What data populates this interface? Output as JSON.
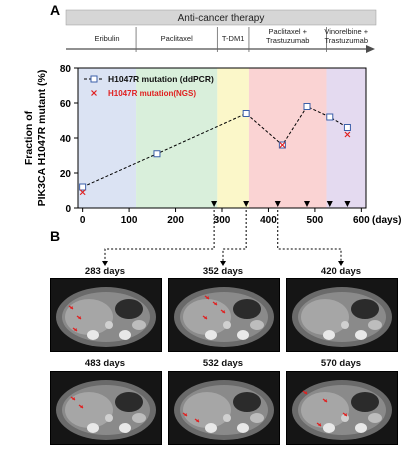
{
  "panel_a_letter": "A",
  "panel_b_letter": "B",
  "therapy_header": "Anti-cancer therapy",
  "phases": [
    {
      "label": "Eribulin",
      "label2": "",
      "start": -10,
      "end": 115,
      "color": "#dbe3f3"
    },
    {
      "label": "Paclitaxel",
      "label2": "",
      "start": 115,
      "end": 290,
      "color": "#d9efdb"
    },
    {
      "label": "T-DM1",
      "label2": "",
      "start": 290,
      "end": 358,
      "color": "#fbf7c9"
    },
    {
      "label": "Paclitaxel +",
      "label2": "Trastuzumab",
      "start": 358,
      "end": 525,
      "color": "#fad3d3"
    },
    {
      "label": "Vinorelbine +",
      "label2": "Trastuzumab",
      "start": 525,
      "end": 610,
      "color": "#e4daf0"
    }
  ],
  "chart_data": {
    "type": "line",
    "xlabel": "(days)",
    "ylabel_line1": "Fraction of",
    "ylabel_line2": "PIK3CA H1047R mutant (%)",
    "xlim": [
      -10,
      610
    ],
    "ylim": [
      0,
      80
    ],
    "xticks": [
      0,
      100,
      200,
      300,
      400,
      500,
      600
    ],
    "yticks": [
      0,
      20,
      40,
      60,
      80
    ],
    "legend_position": "top-left",
    "series": [
      {
        "name": "H1047R mutation (ddPCR)",
        "marker": "square",
        "color": "#3b5fa8",
        "line": "dashed",
        "x": [
          0,
          160,
          352,
          430,
          483,
          532,
          570
        ],
        "y": [
          12,
          31,
          54,
          36,
          58,
          52,
          46
        ]
      },
      {
        "name": "H1047R mutation(NGS)",
        "marker": "x",
        "color": "#e02020",
        "line": "none",
        "x": [
          0,
          430,
          570
        ],
        "y": [
          9,
          36,
          42
        ]
      }
    ],
    "event_days": [
      283,
      352,
      420,
      483,
      532,
      570
    ]
  },
  "scans": [
    {
      "label": "283 days"
    },
    {
      "label": "352 days"
    },
    {
      "label": "420 days"
    },
    {
      "label": "483 days"
    },
    {
      "label": "532 days"
    },
    {
      "label": "570 days"
    }
  ]
}
